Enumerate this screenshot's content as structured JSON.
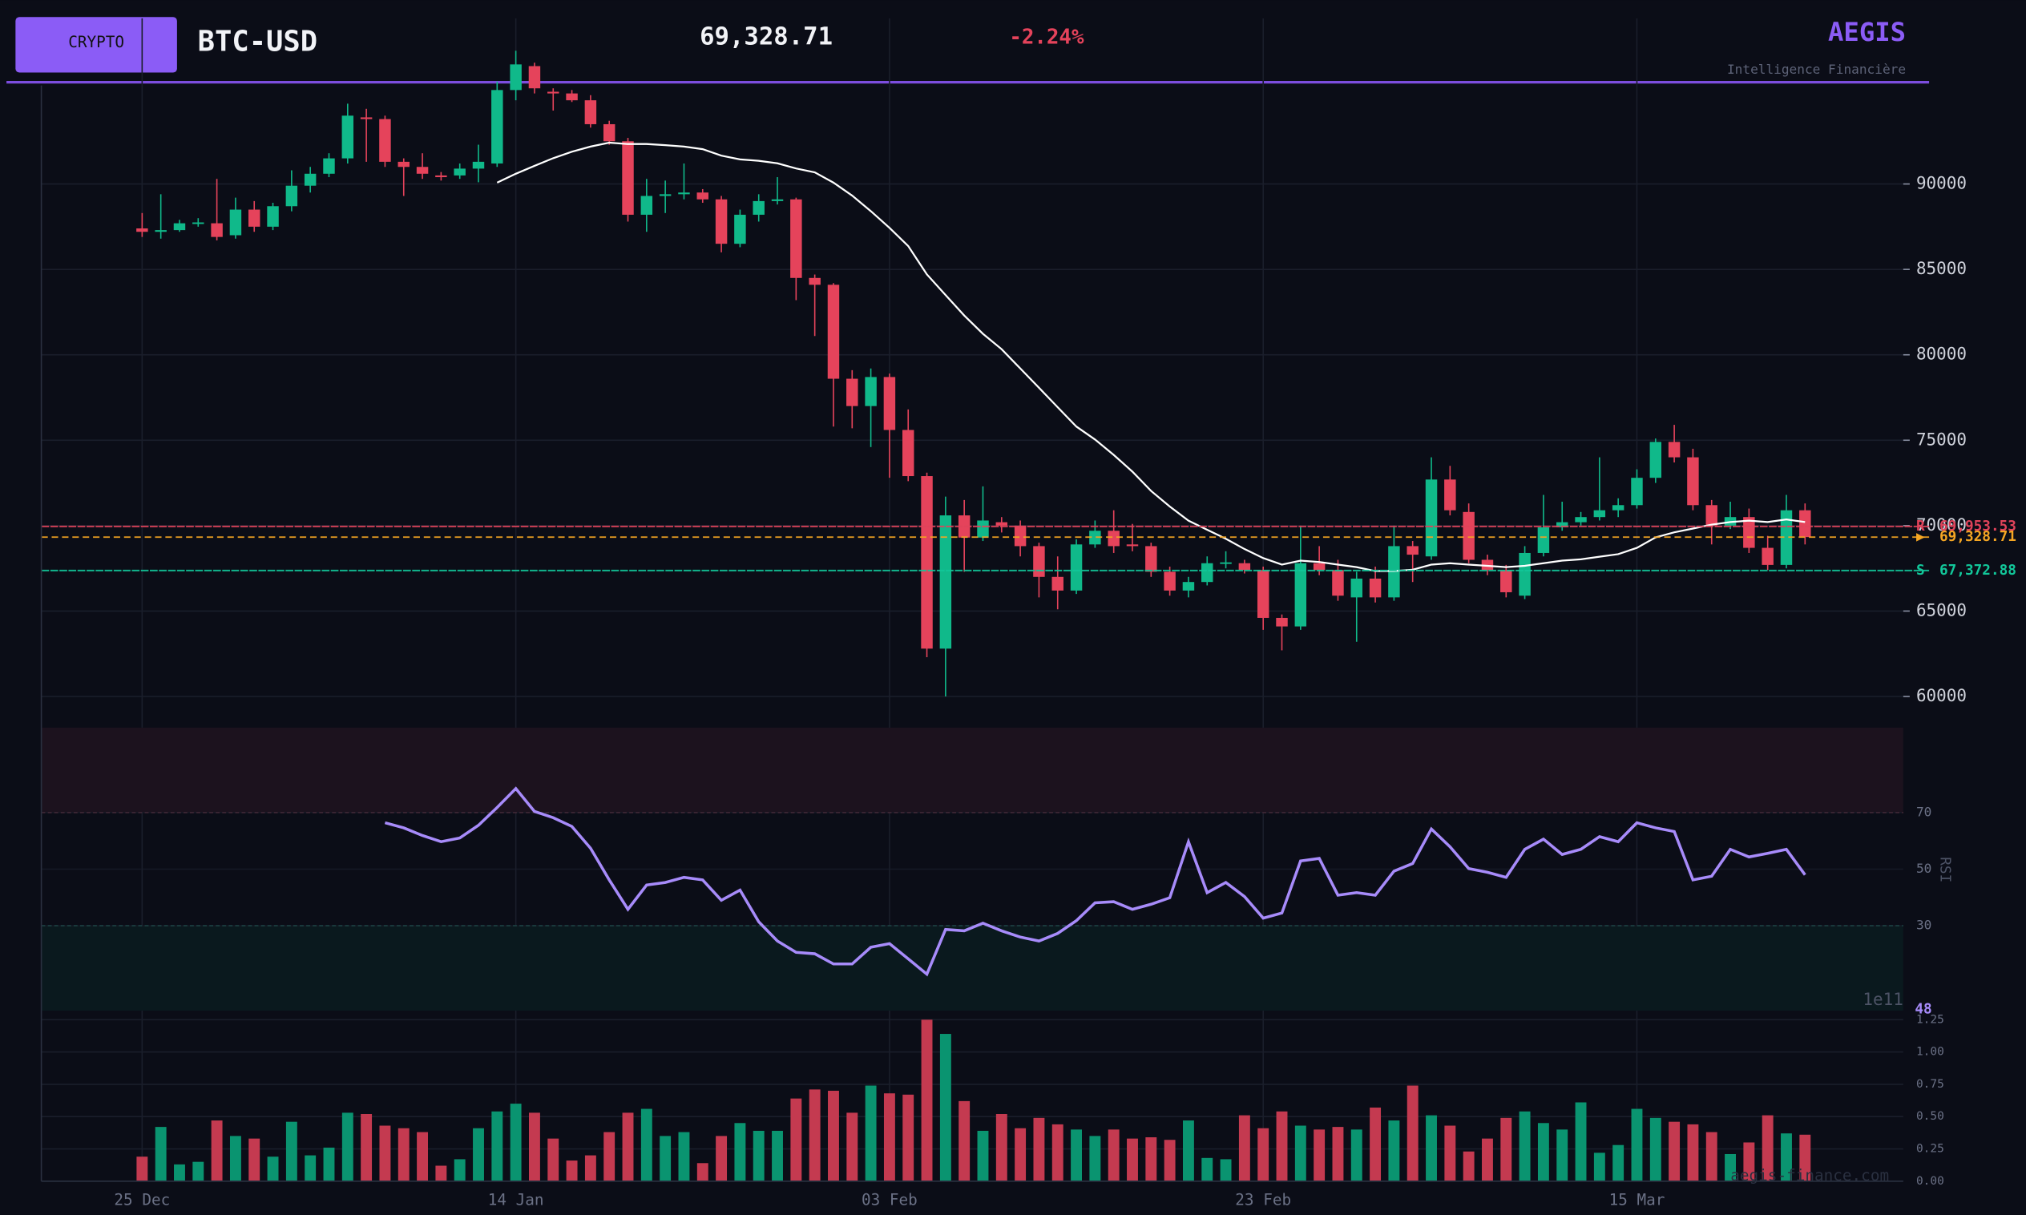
{
  "header": {
    "badge": "CRYPTO",
    "symbol": "BTC-USD",
    "price": "69,328.71",
    "change": "-2.24%",
    "brand": "AEGIS",
    "tagline": "Intelligence Financière"
  },
  "watermark": "aegis-finance.com",
  "chart_data": [
    {
      "type": "candlestick",
      "categories": [
        "25 Dec",
        null,
        null,
        null,
        null,
        null,
        null,
        null,
        null,
        null,
        null,
        null,
        null,
        null,
        null,
        null,
        null,
        null,
        null,
        null,
        "14 Jan",
        null,
        null,
        null,
        null,
        null,
        null,
        null,
        null,
        null,
        null,
        null,
        null,
        null,
        null,
        null,
        null,
        null,
        null,
        null,
        "03 Feb",
        null,
        null,
        null,
        null,
        null,
        null,
        null,
        null,
        null,
        null,
        null,
        null,
        null,
        null,
        null,
        null,
        null,
        null,
        null,
        "23 Feb",
        null,
        null,
        null,
        null,
        null,
        null,
        null,
        null,
        null,
        null,
        null,
        null,
        null,
        null,
        null,
        null,
        null,
        null,
        null,
        "15 Mar",
        null,
        null,
        null,
        null,
        null,
        null,
        null,
        null,
        null
      ],
      "open": [
        87400,
        87200,
        87300,
        87700,
        87700,
        87000,
        88500,
        87500,
        88700,
        89900,
        90600,
        91500,
        93900,
        93800,
        91300,
        91000,
        90500,
        90500,
        90900,
        91200,
        95500,
        96900,
        95400,
        95300,
        94900,
        93500,
        92500,
        88200,
        89300,
        89400,
        89500,
        89100,
        86500,
        88200,
        89000,
        89100,
        84500,
        84100,
        78600,
        77000,
        78700,
        75600,
        72900,
        62800,
        70600,
        69300,
        70200,
        70000,
        68800,
        67000,
        66200,
        68900,
        69700,
        68900,
        68800,
        67300,
        66200,
        66700,
        67800,
        67800,
        67400,
        64600,
        64100,
        67800,
        67400,
        65800,
        66900,
        65800,
        68800,
        68200,
        72700,
        70800,
        68000,
        67400,
        65900,
        68400,
        69900,
        70200,
        70500,
        70900,
        71200,
        72800,
        74900,
        74000,
        71200,
        70000,
        70500,
        68700,
        67700,
        70900
      ],
      "high": [
        88300,
        89400,
        87900,
        88000,
        90300,
        89200,
        89000,
        88900,
        90800,
        91000,
        91800,
        94700,
        94400,
        94000,
        91500,
        91800,
        90700,
        91200,
        92300,
        96000,
        97800,
        97100,
        95600,
        95500,
        95200,
        93700,
        92700,
        90300,
        90200,
        91200,
        89700,
        89300,
        88500,
        89400,
        90400,
        89200,
        84700,
        84200,
        79100,
        79200,
        78900,
        76800,
        73100,
        71700,
        71500,
        72300,
        70500,
        70300,
        69000,
        68200,
        69200,
        70300,
        70900,
        70100,
        69000,
        67600,
        67000,
        68200,
        68500,
        68000,
        67600,
        64800,
        70000,
        68800,
        68000,
        67300,
        67600,
        70000,
        69100,
        74000,
        73500,
        71300,
        68300,
        67700,
        68800,
        71800,
        71400,
        70800,
        74000,
        71600,
        73300,
        75100,
        75900,
        74500,
        71500,
        71400,
        71000,
        69400,
        71800,
        71300
      ],
      "low": [
        86900,
        86800,
        87200,
        87500,
        86700,
        86800,
        87200,
        87300,
        88400,
        89500,
        90400,
        91200,
        91300,
        91000,
        89300,
        90300,
        90200,
        90300,
        90100,
        91000,
        94900,
        95300,
        94300,
        94800,
        93300,
        92300,
        87800,
        87200,
        88300,
        89100,
        88900,
        86000,
        86300,
        87800,
        88800,
        83200,
        81100,
        75800,
        75700,
        74600,
        72800,
        72600,
        62300,
        60000,
        67300,
        69100,
        69600,
        68200,
        65800,
        65100,
        66000,
        68700,
        68400,
        68500,
        67000,
        65900,
        65800,
        66500,
        67500,
        67200,
        63900,
        62700,
        63900,
        67100,
        65600,
        63200,
        65500,
        65600,
        66700,
        68000,
        70600,
        67800,
        67100,
        65800,
        65700,
        68200,
        69700,
        70000,
        70300,
        70500,
        71000,
        72500,
        73700,
        70900,
        68900,
        69800,
        68400,
        67400,
        67500,
        68900
      ],
      "close": [
        87200,
        87300,
        87700,
        87750,
        86900,
        88500,
        87500,
        88700,
        89900,
        90600,
        91500,
        94000,
        93800,
        91300,
        91000,
        90600,
        90400,
        90900,
        91300,
        95500,
        97000,
        95600,
        95300,
        94900,
        93500,
        92500,
        88200,
        89300,
        89400,
        89500,
        89100,
        86500,
        88200,
        89000,
        89100,
        84500,
        84100,
        78600,
        77000,
        78700,
        75600,
        72900,
        62800,
        70600,
        69300,
        70300,
        70000,
        68800,
        67000,
        66200,
        68900,
        69700,
        68800,
        68800,
        67300,
        66200,
        66700,
        67800,
        67850,
        67400,
        64600,
        64100,
        67800,
        67400,
        65900,
        66900,
        65800,
        68800,
        68300,
        72700,
        70900,
        68000,
        67400,
        66100,
        68400,
        69900,
        70200,
        70500,
        70900,
        71200,
        72800,
        74900,
        74000,
        71200,
        70000,
        70500,
        68700,
        67700,
        70900,
        69328.71
      ],
      "ma": {
        "color": "#ffffff",
        "values": [
          null,
          null,
          null,
          null,
          null,
          null,
          null,
          null,
          null,
          null,
          null,
          null,
          null,
          null,
          null,
          null,
          null,
          null,
          null,
          90080,
          90600,
          91060,
          91510,
          91890,
          92190,
          92420,
          92340,
          92340,
          92270,
          92190,
          92040,
          91660,
          91440,
          91360,
          91210,
          90910,
          90680,
          90080,
          89320,
          88410,
          87430,
          86370,
          84710,
          83500,
          82300,
          81230,
          80330,
          79200,
          78070,
          76930,
          75800,
          75040,
          74140,
          73160,
          72030,
          71120,
          70290,
          69760,
          69230,
          68630,
          68100,
          67720,
          67950,
          67870,
          67720,
          67570,
          67340,
          67340,
          67420,
          67720,
          67800,
          67720,
          67650,
          67570,
          67650,
          67800,
          67950,
          68030,
          68180,
          68330,
          68700,
          69310,
          69610,
          69830,
          70060,
          70210,
          70290,
          70210,
          70360,
          70210
        ]
      },
      "levels": [
        {
          "tag": "R",
          "value": 69953.53,
          "label": "69,953.53",
          "color": "#e0435a"
        },
        {
          "tag": "▶",
          "value": 69328.71,
          "label": "69,328.71",
          "color": "#f5a623"
        },
        {
          "tag": "S",
          "value": 67372.88,
          "label": "67,372.88",
          "color": "#12c79a"
        }
      ],
      "up_color": "#10b98a",
      "down_color": "#e5435b",
      "ylim": [
        58400,
        99700
      ],
      "yticks": [
        60000,
        65000,
        70000,
        75000,
        80000,
        85000,
        90000
      ],
      "grid": true
    },
    {
      "type": "line",
      "axis_label": "RSI",
      "values": [
        null,
        null,
        null,
        null,
        null,
        null,
        null,
        null,
        null,
        null,
        null,
        null,
        null,
        66.4,
        64.6,
        61.9,
        59.7,
        61.0,
        65.5,
        71.8,
        78.5,
        70.4,
        68.2,
        65.1,
        57.4,
        46.2,
        35.8,
        44.4,
        45.3,
        47.1,
        46.2,
        39.0,
        42.6,
        31.4,
        24.6,
        20.6,
        20.1,
        16.5,
        16.5,
        22.4,
        23.7,
        18.3,
        12.9,
        28.7,
        28.2,
        30.9,
        28.2,
        26.0,
        24.6,
        27.3,
        31.8,
        38.1,
        38.5,
        35.8,
        37.6,
        39.9,
        59.7,
        41.7,
        45.3,
        40.3,
        32.7,
        34.5,
        52.9,
        53.8,
        40.8,
        41.7,
        40.8,
        49.3,
        52.0,
        64.2,
        57.9,
        50.2,
        48.9,
        47.1,
        57.0,
        60.6,
        55.2,
        57.0,
        61.5,
        59.7,
        66.4,
        64.6,
        63.3,
        46.2,
        47.5,
        57.0,
        54.3,
        55.6,
        57.0,
        48
      ],
      "color": "#a78bfa",
      "overbought": 70,
      "oversold": 30,
      "ylim": [
        0,
        100
      ],
      "yticks": [
        30,
        50,
        70
      ]
    },
    {
      "type": "bar",
      "scale_label": "1e11",
      "values": [
        0.19,
        0.42,
        0.13,
        0.15,
        0.47,
        0.35,
        0.33,
        0.19,
        0.46,
        0.2,
        0.26,
        0.53,
        0.52,
        0.43,
        0.41,
        0.38,
        0.12,
        0.17,
        0.41,
        0.54,
        0.6,
        0.53,
        0.33,
        0.16,
        0.2,
        0.38,
        0.53,
        0.56,
        0.35,
        0.38,
        0.14,
        0.35,
        0.45,
        0.39,
        0.39,
        0.64,
        0.71,
        0.7,
        0.53,
        0.74,
        0.68,
        0.67,
        1.25,
        1.14,
        0.62,
        0.39,
        0.52,
        0.41,
        0.49,
        0.44,
        0.4,
        0.35,
        0.4,
        0.33,
        0.34,
        0.32,
        0.47,
        0.18,
        0.17,
        0.51,
        0.41,
        0.54,
        0.43,
        0.4,
        0.42,
        0.4,
        0.57,
        0.47,
        0.74,
        0.51,
        0.43,
        0.23,
        0.33,
        0.49,
        0.54,
        0.45,
        0.4,
        0.61,
        0.22,
        0.28,
        0.56,
        0.49,
        0.46,
        0.44,
        0.38,
        0.21,
        0.3,
        0.51,
        0.37,
        0.36
      ],
      "up_color": "#0a9470",
      "down_color": "#c43a50",
      "ylim": [
        0,
        1.25
      ],
      "yticks": [
        {
          "value": 0,
          "label": "0.00"
        },
        {
          "value": 0.25,
          "label": "0.25"
        },
        {
          "value": 0.5,
          "label": "0.50"
        },
        {
          "value": 0.75,
          "label": "0.75"
        },
        {
          "value": 1.0,
          "label": "1.00"
        },
        {
          "value": 1.25,
          "label": "1.25"
        }
      ]
    }
  ]
}
